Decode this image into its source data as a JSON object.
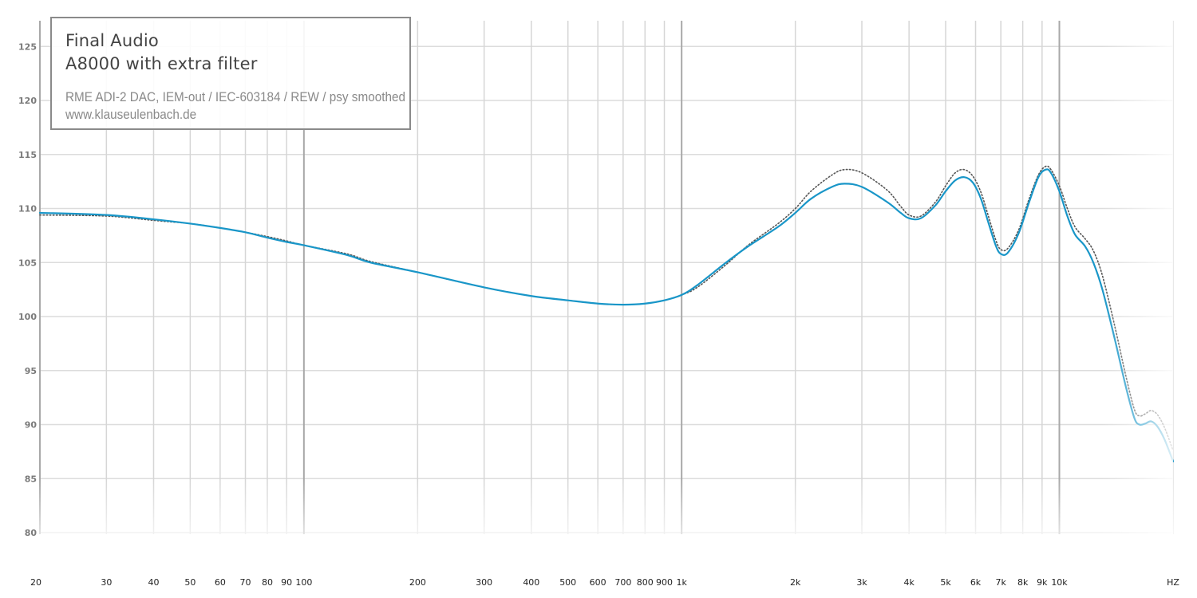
{
  "legend": {
    "brand": "Final Audio",
    "model": "A8000 with extra filter",
    "setup": "RME ADI-2 DAC, IEM-out / IEC-603184 / REW / psy smoothed",
    "website": "www.klauseulenbach.de"
  },
  "chart_data": {
    "type": "line",
    "title": "",
    "xlabel": "",
    "ylabel": "",
    "x_scale": "log",
    "xlim": [
      20,
      20000
    ],
    "ylim": [
      80,
      127
    ],
    "grid": true,
    "y_ticks": [
      80,
      85,
      90,
      95,
      100,
      105,
      110,
      115,
      120,
      125
    ],
    "x_tick_labels": [
      {
        "value": 20,
        "label": "20"
      },
      {
        "value": 30,
        "label": "30"
      },
      {
        "value": 40,
        "label": "40"
      },
      {
        "value": 50,
        "label": "50"
      },
      {
        "value": 60,
        "label": "60"
      },
      {
        "value": 70,
        "label": "70"
      },
      {
        "value": 80,
        "label": "80"
      },
      {
        "value": 90,
        "label": "90"
      },
      {
        "value": 100,
        "label": "100"
      },
      {
        "value": 200,
        "label": "200"
      },
      {
        "value": 300,
        "label": "300"
      },
      {
        "value": 400,
        "label": "400"
      },
      {
        "value": 500,
        "label": "500"
      },
      {
        "value": 600,
        "label": "600"
      },
      {
        "value": 700,
        "label": "700"
      },
      {
        "value": 800,
        "label": "800"
      },
      {
        "value": 900,
        "label": "900"
      },
      {
        "value": 1000,
        "label": "1k"
      },
      {
        "value": 2000,
        "label": "2k"
      },
      {
        "value": 3000,
        "label": "3k"
      },
      {
        "value": 4000,
        "label": "4k"
      },
      {
        "value": 5000,
        "label": "5k"
      },
      {
        "value": 6000,
        "label": "6k"
      },
      {
        "value": 7000,
        "label": "7k"
      },
      {
        "value": 8000,
        "label": "8k"
      },
      {
        "value": 9000,
        "label": "9k"
      },
      {
        "value": 10000,
        "label": "10k"
      }
    ],
    "x_unit_label": "HZ",
    "series": [
      {
        "style": "solid",
        "color": "#1996c8",
        "points": [
          [
            20,
            109.6
          ],
          [
            30,
            109.4
          ],
          [
            40,
            109.0
          ],
          [
            50,
            108.6
          ],
          [
            60,
            108.2
          ],
          [
            70,
            107.8
          ],
          [
            80,
            107.3
          ],
          [
            90,
            106.9
          ],
          [
            100,
            106.6
          ],
          [
            130,
            105.7
          ],
          [
            150,
            105.0
          ],
          [
            200,
            104.1
          ],
          [
            300,
            102.7
          ],
          [
            400,
            101.9
          ],
          [
            500,
            101.5
          ],
          [
            600,
            101.2
          ],
          [
            700,
            101.1
          ],
          [
            800,
            101.2
          ],
          [
            900,
            101.5
          ],
          [
            1000,
            102.0
          ],
          [
            1100,
            102.9
          ],
          [
            1300,
            104.9
          ],
          [
            1500,
            106.5
          ],
          [
            1800,
            108.3
          ],
          [
            2000,
            109.6
          ],
          [
            2200,
            110.9
          ],
          [
            2500,
            112.0
          ],
          [
            2700,
            112.3
          ],
          [
            3000,
            112.0
          ],
          [
            3500,
            110.6
          ],
          [
            3800,
            109.6
          ],
          [
            4000,
            109.1
          ],
          [
            4300,
            109.1
          ],
          [
            4700,
            110.3
          ],
          [
            5000,
            111.6
          ],
          [
            5300,
            112.6
          ],
          [
            5600,
            112.9
          ],
          [
            5900,
            112.4
          ],
          [
            6200,
            110.9
          ],
          [
            6500,
            108.6
          ],
          [
            6800,
            106.5
          ],
          [
            7000,
            105.8
          ],
          [
            7300,
            105.9
          ],
          [
            7800,
            107.7
          ],
          [
            8300,
            110.5
          ],
          [
            8800,
            112.9
          ],
          [
            9200,
            113.6
          ],
          [
            9500,
            113.3
          ],
          [
            10000,
            111.6
          ],
          [
            10500,
            109.3
          ],
          [
            11000,
            107.6
          ],
          [
            11700,
            106.5
          ],
          [
            12300,
            105.0
          ],
          [
            13000,
            102.5
          ],
          [
            14000,
            98.0
          ],
          [
            15000,
            93.5
          ],
          [
            15800,
            90.6
          ],
          [
            16300,
            90.0
          ],
          [
            16900,
            90.1
          ],
          [
            17500,
            90.3
          ],
          [
            18200,
            89.8
          ],
          [
            19000,
            88.6
          ],
          [
            20000,
            86.6
          ]
        ]
      },
      {
        "style": "dotted",
        "color": "#555555",
        "points": [
          [
            20,
            109.4
          ],
          [
            30,
            109.3
          ],
          [
            40,
            108.9
          ],
          [
            50,
            108.6
          ],
          [
            60,
            108.2
          ],
          [
            70,
            107.8
          ],
          [
            80,
            107.4
          ],
          [
            90,
            107.0
          ],
          [
            100,
            106.6
          ],
          [
            130,
            105.8
          ],
          [
            150,
            105.1
          ],
          [
            200,
            104.1
          ],
          [
            300,
            102.7
          ],
          [
            400,
            101.9
          ],
          [
            500,
            101.5
          ],
          [
            600,
            101.2
          ],
          [
            700,
            101.1
          ],
          [
            800,
            101.2
          ],
          [
            900,
            101.5
          ],
          [
            1000,
            102.0
          ],
          [
            1100,
            102.7
          ],
          [
            1300,
            104.7
          ],
          [
            1500,
            106.6
          ],
          [
            1800,
            108.6
          ],
          [
            2000,
            110.0
          ],
          [
            2200,
            111.6
          ],
          [
            2500,
            113.1
          ],
          [
            2700,
            113.6
          ],
          [
            3000,
            113.3
          ],
          [
            3500,
            111.7
          ],
          [
            3800,
            110.2
          ],
          [
            4000,
            109.4
          ],
          [
            4300,
            109.3
          ],
          [
            4700,
            110.6
          ],
          [
            5000,
            112.1
          ],
          [
            5300,
            113.3
          ],
          [
            5600,
            113.6
          ],
          [
            5900,
            113.0
          ],
          [
            6200,
            111.5
          ],
          [
            6500,
            109.2
          ],
          [
            6800,
            107.0
          ],
          [
            7000,
            106.2
          ],
          [
            7300,
            106.3
          ],
          [
            7800,
            108.0
          ],
          [
            8300,
            110.8
          ],
          [
            8800,
            113.1
          ],
          [
            9200,
            113.9
          ],
          [
            9500,
            113.6
          ],
          [
            10000,
            112.1
          ],
          [
            10500,
            110.0
          ],
          [
            11000,
            108.3
          ],
          [
            11700,
            107.2
          ],
          [
            12300,
            106.1
          ],
          [
            13000,
            103.8
          ],
          [
            14000,
            99.2
          ],
          [
            15000,
            94.5
          ],
          [
            15800,
            91.4
          ],
          [
            16300,
            90.8
          ],
          [
            16900,
            91.0
          ],
          [
            17500,
            91.3
          ],
          [
            18200,
            90.9
          ],
          [
            19000,
            89.7
          ],
          [
            20000,
            87.6
          ]
        ]
      }
    ]
  }
}
